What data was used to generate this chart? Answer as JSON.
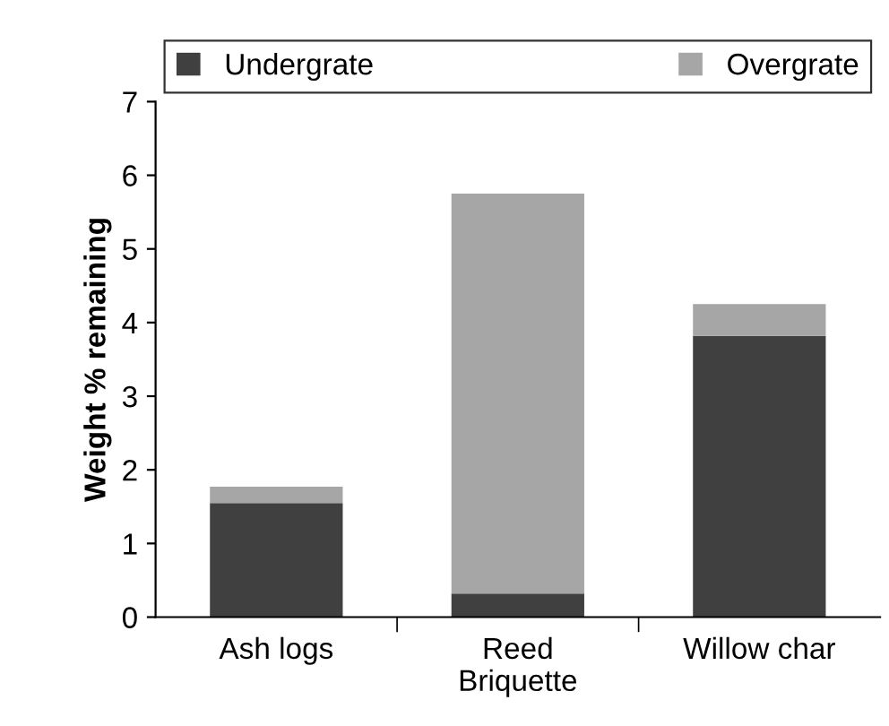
{
  "chart_data": {
    "type": "bar",
    "stacked": true,
    "ylabel": "Weight % remaining",
    "categories": [
      "Ash logs",
      "Reed Briquette",
      "Willow char"
    ],
    "series": [
      {
        "name": "Undergrate",
        "color": "#404040",
        "values": [
          1.55,
          0.32,
          3.82
        ]
      },
      {
        "name": "Overgrate",
        "color": "#a6a6a6",
        "values": [
          0.22,
          5.43,
          0.43
        ]
      }
    ],
    "ylim": [
      0,
      7
    ],
    "yticks": [
      0,
      1,
      2,
      3,
      4,
      5,
      6,
      7
    ],
    "grid": false,
    "legend": "top"
  }
}
